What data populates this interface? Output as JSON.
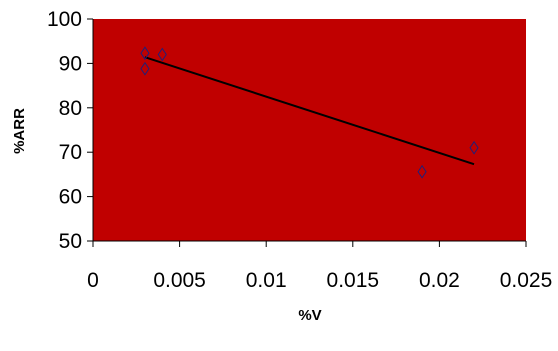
{
  "chart_data": {
    "type": "scatter",
    "title": "",
    "xlabel": "%V",
    "ylabel": "%ARR",
    "xlim": [
      0,
      0.025
    ],
    "ylim": [
      50,
      100
    ],
    "x_ticks": [
      "0",
      "0.005",
      "0.01",
      "0.015",
      "0.02",
      "0.025"
    ],
    "y_ticks": [
      "50",
      "60",
      "70",
      "80",
      "90",
      "100"
    ],
    "plot_background": "#C00000",
    "marker": "diamond",
    "marker_color": "#1F1F7A",
    "grid": false,
    "legend": "none",
    "series": [
      {
        "points": [
          {
            "x": 0.003,
            "y": 92.3
          },
          {
            "x": 0.003,
            "y": 88.8
          },
          {
            "x": 0.004,
            "y": 92.0
          },
          {
            "x": 0.019,
            "y": 65.6
          },
          {
            "x": 0.022,
            "y": 71.0
          }
        ]
      }
    ],
    "trendline": {
      "type": "linear",
      "start": {
        "x": 0.003,
        "y": 91.4
      },
      "end": {
        "x": 0.022,
        "y": 67.3
      },
      "color": "#000000"
    }
  }
}
